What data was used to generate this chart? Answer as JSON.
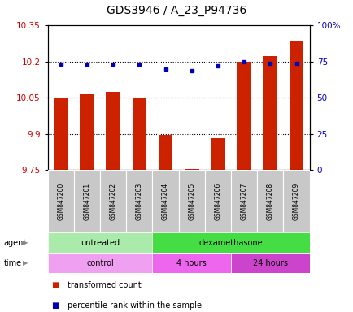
{
  "title": "GDS3946 / A_23_P94736",
  "samples": [
    "GSM847200",
    "GSM847201",
    "GSM847202",
    "GSM847203",
    "GSM847204",
    "GSM847205",
    "GSM847206",
    "GSM847207",
    "GSM847208",
    "GSM847209"
  ],
  "red_values": [
    10.05,
    10.065,
    10.075,
    10.047,
    9.895,
    9.756,
    9.882,
    10.2,
    10.225,
    10.285
  ],
  "blue_values": [
    73,
    73,
    73,
    73,
    70,
    69,
    72,
    75,
    74,
    74
  ],
  "ylim_left": [
    9.75,
    10.35
  ],
  "ylim_right": [
    0,
    100
  ],
  "yticks_left": [
    9.75,
    9.9,
    10.05,
    10.2,
    10.35
  ],
  "ytick_labels_left": [
    "9.75",
    "9.9",
    "10.05",
    "10.2",
    "10.35"
  ],
  "yticks_right": [
    0,
    25,
    50,
    75,
    100
  ],
  "ytick_labels_right": [
    "0",
    "25",
    "50",
    "75",
    "100%"
  ],
  "hlines": [
    9.9,
    10.05,
    10.2
  ],
  "agent_groups": [
    {
      "label": "untreated",
      "start": 0,
      "end": 4,
      "color": "#aaeaaa"
    },
    {
      "label": "dexamethasone",
      "start": 4,
      "end": 10,
      "color": "#44dd44"
    }
  ],
  "time_groups": [
    {
      "label": "control",
      "start": 0,
      "end": 4,
      "color": "#f0a0f0"
    },
    {
      "label": "4 hours",
      "start": 4,
      "end": 7,
      "color": "#ee66ee"
    },
    {
      "label": "24 hours",
      "start": 7,
      "end": 10,
      "color": "#cc44cc"
    }
  ],
  "legend_items": [
    {
      "label": "transformed count",
      "color": "#CC2200"
    },
    {
      "label": "percentile rank within the sample",
      "color": "#0000BB"
    }
  ],
  "bar_color": "#CC2200",
  "dot_color": "#0000BB",
  "bar_width": 0.55,
  "background_color": "#ffffff",
  "plot_bg": "#ffffff",
  "title_fontsize": 10,
  "tick_fontsize": 7.5,
  "sample_fontsize": 5.5,
  "band_fontsize": 7,
  "legend_fontsize": 7
}
